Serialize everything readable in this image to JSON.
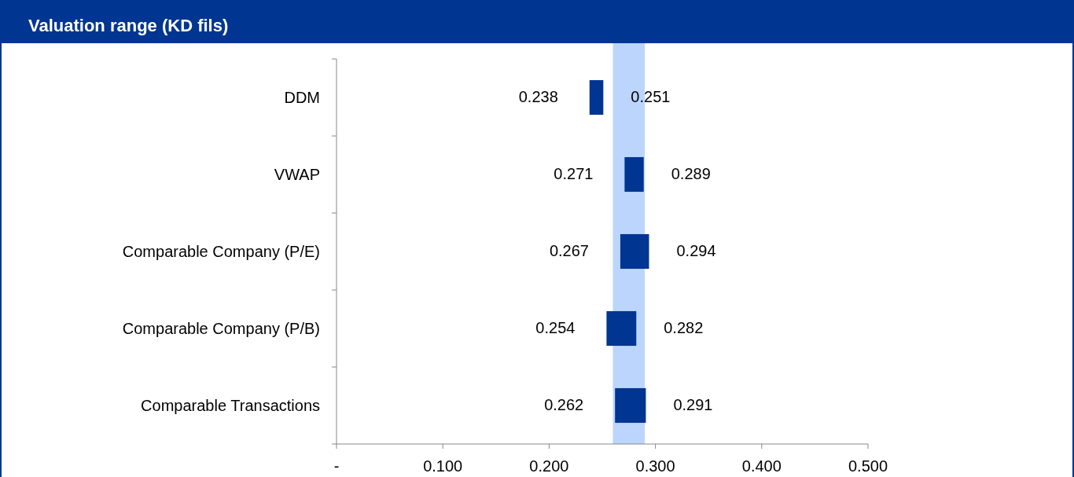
{
  "chart_data": {
    "type": "bar",
    "orientation": "horizontal",
    "title": "Valuation range (KD fils)",
    "categories": [
      "DDM",
      "VWAP",
      "Comparable Company (P/E)",
      "Comparable Company (P/B)",
      "Comparable Transactions"
    ],
    "base": [
      0.238,
      0.271,
      0.267,
      0.254,
      0.262
    ],
    "values": [
      0.013,
      0.018,
      0.027,
      0.028,
      0.029
    ],
    "color": "#003591",
    "xlim": [
      0,
      0.5
    ],
    "xticks": [
      {
        "value": 0,
        "label": "-"
      },
      {
        "value": 0.1,
        "label": "0.100"
      },
      {
        "value": 0.2,
        "label": "0.200"
      },
      {
        "value": 0.3,
        "label": "0.300"
      },
      {
        "value": 0.4,
        "label": "0.400"
      },
      {
        "value": 0.5,
        "label": "0.500"
      }
    ],
    "bands": [
      {
        "axis": "x",
        "from": 0.26,
        "to": 0.29,
        "color": "#bbd5fc"
      }
    ],
    "annotations": [
      {
        "text": "0.238",
        "x": 0.238,
        "y": "DDM"
      },
      {
        "text": "0.251",
        "x": 0.251,
        "y": "DDM"
      },
      {
        "text": "0.271",
        "x": 0.271,
        "y": "VWAP"
      },
      {
        "text": "0.289",
        "x": 0.289,
        "y": "VWAP"
      },
      {
        "text": "0.267",
        "x": 0.267,
        "y": "Comparable Company (P/E)"
      },
      {
        "text": "0.294",
        "x": 0.294,
        "y": "Comparable Company (P/E)"
      },
      {
        "text": "0.254",
        "x": 0.254,
        "y": "Comparable Company (P/B)"
      },
      {
        "text": "0.282",
        "x": 0.282,
        "y": "Comparable Company (P/B)"
      },
      {
        "text": "0.262",
        "x": 0.262,
        "y": "Comparable Transactions"
      },
      {
        "text": "0.291",
        "x": 0.291,
        "y": "Comparable Transactions"
      }
    ],
    "grid": false
  }
}
